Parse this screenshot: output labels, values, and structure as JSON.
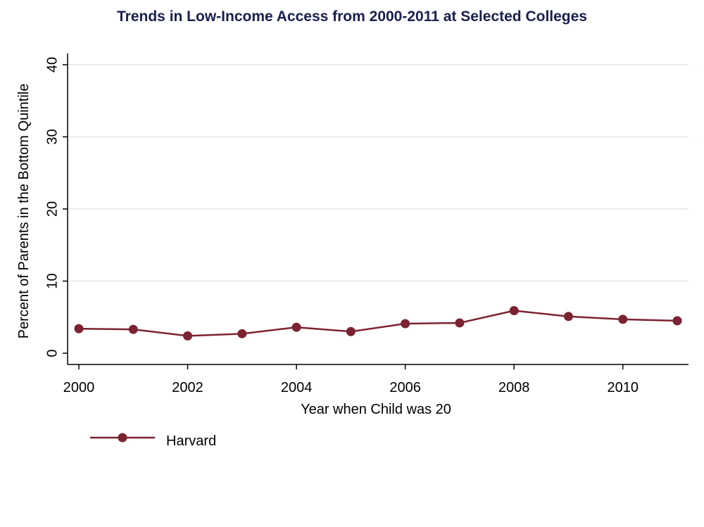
{
  "chart_data": {
    "type": "line",
    "title": "Trends in Low-Income Access from 2000-2011 at Selected Colleges",
    "xlabel": "Year when Child was 20",
    "ylabel": "Percent of Parents in the Bottom Quintile",
    "x": [
      2000,
      2001,
      2002,
      2003,
      2004,
      2005,
      2006,
      2007,
      2008,
      2009,
      2010,
      2011
    ],
    "series": [
      {
        "name": "Harvard",
        "values": [
          3.4,
          3.3,
          2.4,
          2.7,
          3.6,
          3.0,
          4.1,
          4.2,
          5.9,
          5.1,
          4.7,
          4.5
        ],
        "color": "#7b2331"
      }
    ],
    "xlim": [
      2000,
      2011
    ],
    "ylim": [
      0,
      40
    ],
    "xticks": [
      "2000",
      "2002",
      "2004",
      "2006",
      "2008",
      "2010"
    ],
    "yticks": [
      "0",
      "10",
      "20",
      "30",
      "40"
    ],
    "grid": "horizontal",
    "gridColor": "#dce6e8",
    "titleColor": "#1a1f4e",
    "legend_position": "bottom-left"
  }
}
